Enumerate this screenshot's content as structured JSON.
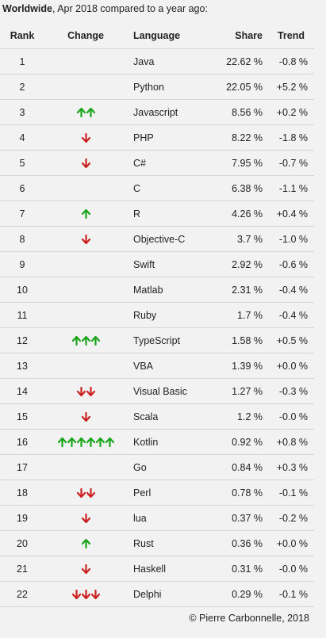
{
  "caption": {
    "bold": "Worldwide",
    "rest": ", Apr 2018 compared to a year ago:"
  },
  "table": {
    "headers": {
      "rank": "Rank",
      "change": "Change",
      "language": "Language",
      "share": "Share",
      "trend": "Trend"
    },
    "rows": [
      {
        "rank": "1",
        "change": {
          "dir": "none",
          "count": 0
        },
        "language": "Java",
        "share": "22.62 %",
        "trend": "-0.8 %"
      },
      {
        "rank": "2",
        "change": {
          "dir": "none",
          "count": 0
        },
        "language": "Python",
        "share": "22.05 %",
        "trend": "+5.2 %"
      },
      {
        "rank": "3",
        "change": {
          "dir": "up",
          "count": 2
        },
        "language": "Javascript",
        "share": "8.56 %",
        "trend": "+0.2 %"
      },
      {
        "rank": "4",
        "change": {
          "dir": "down",
          "count": 1
        },
        "language": "PHP",
        "share": "8.22 %",
        "trend": "-1.8 %"
      },
      {
        "rank": "5",
        "change": {
          "dir": "down",
          "count": 1
        },
        "language": "C#",
        "share": "7.95 %",
        "trend": "-0.7 %"
      },
      {
        "rank": "6",
        "change": {
          "dir": "none",
          "count": 0
        },
        "language": "C",
        "share": "6.38 %",
        "trend": "-1.1 %"
      },
      {
        "rank": "7",
        "change": {
          "dir": "up",
          "count": 1
        },
        "language": "R",
        "share": "4.26 %",
        "trend": "+0.4 %"
      },
      {
        "rank": "8",
        "change": {
          "dir": "down",
          "count": 1
        },
        "language": "Objective-C",
        "share": "3.7 %",
        "trend": "-1.0 %"
      },
      {
        "rank": "9",
        "change": {
          "dir": "none",
          "count": 0
        },
        "language": "Swift",
        "share": "2.92 %",
        "trend": "-0.6 %"
      },
      {
        "rank": "10",
        "change": {
          "dir": "none",
          "count": 0
        },
        "language": "Matlab",
        "share": "2.31 %",
        "trend": "-0.4 %"
      },
      {
        "rank": "11",
        "change": {
          "dir": "none",
          "count": 0
        },
        "language": "Ruby",
        "share": "1.7 %",
        "trend": "-0.4 %"
      },
      {
        "rank": "12",
        "change": {
          "dir": "up",
          "count": 3
        },
        "language": "TypeScript",
        "share": "1.58 %",
        "trend": "+0.5 %"
      },
      {
        "rank": "13",
        "change": {
          "dir": "none",
          "count": 0
        },
        "language": "VBA",
        "share": "1.39 %",
        "trend": "+0.0 %"
      },
      {
        "rank": "14",
        "change": {
          "dir": "down",
          "count": 2
        },
        "language": "Visual Basic",
        "share": "1.27 %",
        "trend": "-0.3 %"
      },
      {
        "rank": "15",
        "change": {
          "dir": "down",
          "count": 1
        },
        "language": "Scala",
        "share": "1.2 %",
        "trend": "-0.0 %"
      },
      {
        "rank": "16",
        "change": {
          "dir": "up",
          "count": 6
        },
        "language": "Kotlin",
        "share": "0.92 %",
        "trend": "+0.8 %"
      },
      {
        "rank": "17",
        "change": {
          "dir": "none",
          "count": 0
        },
        "language": "Go",
        "share": "0.84 %",
        "trend": "+0.3 %"
      },
      {
        "rank": "18",
        "change": {
          "dir": "down",
          "count": 2
        },
        "language": "Perl",
        "share": "0.78 %",
        "trend": "-0.1 %"
      },
      {
        "rank": "19",
        "change": {
          "dir": "down",
          "count": 1
        },
        "language": "lua",
        "share": "0.37 %",
        "trend": "-0.2 %"
      },
      {
        "rank": "20",
        "change": {
          "dir": "up",
          "count": 1
        },
        "language": "Rust",
        "share": "0.36 %",
        "trend": "+0.0 %"
      },
      {
        "rank": "21",
        "change": {
          "dir": "down",
          "count": 1
        },
        "language": "Haskell",
        "share": "0.31 %",
        "trend": "-0.0 %"
      },
      {
        "rank": "22",
        "change": {
          "dir": "down",
          "count": 3
        },
        "language": "Delphi",
        "share": "0.29 %",
        "trend": "-0.1 %"
      }
    ]
  },
  "footer": {
    "copyright": "© Pierre Carbonnelle, 2018"
  },
  "colors": {
    "up": "#1aa51a",
    "down": "#cc2222"
  }
}
